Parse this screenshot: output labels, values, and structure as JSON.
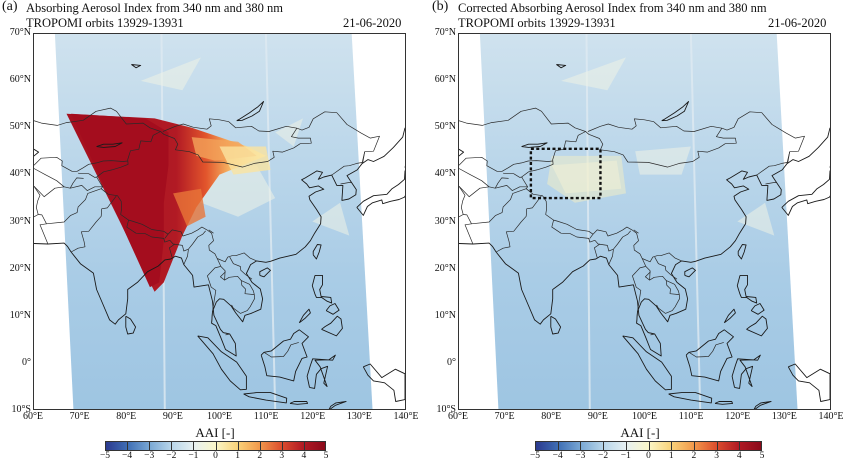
{
  "panels": [
    {
      "tag": "(a)",
      "title_line1": "Absorbing Aerosol Index from 340 nm and 380 nm",
      "title_line2": "TROPOMI orbits 13929-13931",
      "date": "21-06-2020",
      "plume": true,
      "box": false
    },
    {
      "tag": "(b)",
      "title_line1": "Corrected Absorbing Aerosol Index from 340 nm and 380 nm",
      "title_line2": "TROPOMI orbits 13929-13931",
      "date": "21-06-2020",
      "plume": false,
      "box": true
    }
  ],
  "lat_ticks": [
    "70°N",
    "60°N",
    "50°N",
    "40°N",
    "30°N",
    "20°N",
    "10°N",
    "0°",
    "10°S"
  ],
  "lon_ticks": [
    "60°E",
    "70°E",
    "80°E",
    "90°E",
    "100°E",
    "110°E",
    "120°E",
    "130°E",
    "140°E"
  ],
  "colorbar": {
    "label": "AAI [-]",
    "ticks": [
      "−5",
      "−4",
      "−3",
      "−2",
      "−1",
      "0",
      "1",
      "2",
      "3",
      "4",
      "5"
    ],
    "min": -5,
    "max": 5,
    "colors": [
      "#2c3a8f",
      "#3f6fb5",
      "#7aa8d4",
      "#b9d6ea",
      "#e6f0f2",
      "#fbf7c9",
      "#f9d37a",
      "#f29a4c",
      "#dd4f2e",
      "#b11a24",
      "#8b0a1a"
    ]
  },
  "map_extent": {
    "lon_min": 60,
    "lon_max": 140,
    "lat_min": -10,
    "lat_max": 70
  }
}
